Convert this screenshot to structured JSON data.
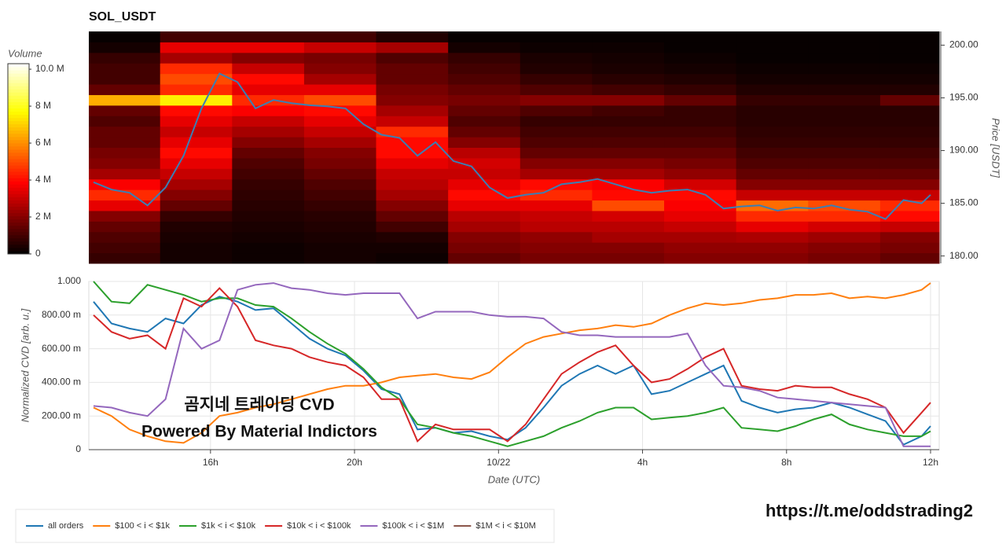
{
  "chart_data": [
    {
      "type": "heatmap",
      "title": "SOL_USDT",
      "colorbar_title": "Volume",
      "y_label": "Price [USDT]",
      "colorscale": "hot",
      "xlim": [
        12.62,
        36.24
      ],
      "ylim": [
        179.3,
        201.3
      ],
      "yticks": [
        {
          "value": 180,
          "label": "180.00"
        },
        {
          "value": 185,
          "label": "185.00"
        },
        {
          "value": 190,
          "label": "190.00"
        },
        {
          "value": 195,
          "label": "195.00"
        },
        {
          "value": 200,
          "label": "200.00"
        }
      ],
      "zlim": [
        0,
        10.3
      ],
      "zticks": [
        0,
        {
          "value": 2,
          "label": "2 M"
        },
        {
          "value": 4,
          "label": "4 M"
        },
        {
          "value": 6,
          "label": "6 M"
        },
        {
          "value": 8,
          "label": "8 M"
        },
        {
          "value": 10,
          "label": "10.0 M"
        }
      ],
      "xbins": [
        12.62,
        14.6,
        16.6,
        18.6,
        20.6,
        22.6,
        24.6,
        26.6,
        28.6,
        30.6,
        32.6,
        34.6,
        36.24
      ],
      "ybins": [
        179.3,
        180.3,
        181.3,
        182.3,
        183.3,
        184.3,
        185.3,
        186.3,
        187.3,
        188.3,
        189.3,
        190.3,
        191.3,
        192.3,
        193.3,
        194.3,
        195.3,
        196.3,
        197.3,
        198.3,
        199.3,
        200.3,
        201.3
      ],
      "z": [
        [
          0.8,
          0.3,
          0.2,
          0.3,
          0.2,
          1.5,
          1.8,
          1.8,
          2.0,
          2.0,
          1.8,
          1.5
        ],
        [
          1.0,
          0.3,
          0.2,
          0.3,
          0.3,
          1.8,
          2.0,
          2.0,
          2.2,
          2.2,
          2.0,
          1.8
        ],
        [
          1.2,
          0.4,
          0.3,
          0.4,
          0.5,
          2.0,
          2.2,
          2.5,
          2.5,
          2.6,
          2.4,
          2.0
        ],
        [
          1.5,
          0.5,
          0.4,
          0.5,
          1.0,
          2.5,
          2.8,
          2.8,
          3.0,
          3.5,
          3.2,
          3.0
        ],
        [
          2.0,
          0.8,
          0.5,
          0.6,
          1.5,
          2.8,
          3.0,
          3.2,
          3.5,
          4.5,
          4.5,
          4.0
        ],
        [
          3.5,
          1.5,
          0.6,
          0.8,
          2.0,
          3.5,
          3.5,
          5.0,
          3.8,
          5.5,
          5.0,
          4.5
        ],
        [
          4.5,
          2.0,
          0.7,
          1.0,
          2.5,
          4.0,
          4.5,
          4.0,
          4.0,
          3.0,
          3.0,
          3.0
        ],
        [
          3.8,
          2.5,
          0.8,
          1.2,
          2.8,
          3.5,
          4.0,
          3.8,
          3.2,
          2.0,
          2.0,
          2.0
        ],
        [
          2.5,
          3.0,
          1.0,
          1.5,
          3.0,
          3.0,
          2.5,
          2.5,
          2.2,
          1.5,
          1.5,
          1.5
        ],
        [
          2.0,
          3.5,
          1.2,
          1.8,
          3.5,
          3.2,
          2.0,
          2.0,
          1.8,
          1.2,
          1.2,
          1.2
        ],
        [
          1.8,
          4.0,
          1.5,
          2.0,
          4.0,
          2.8,
          1.5,
          1.5,
          1.5,
          1.0,
          1.0,
          1.0
        ],
        [
          1.5,
          3.5,
          2.0,
          2.5,
          4.0,
          2.0,
          1.2,
          1.2,
          1.2,
          0.8,
          0.8,
          0.8
        ],
        [
          1.5,
          3.0,
          2.5,
          3.0,
          4.5,
          1.5,
          1.0,
          1.0,
          1.0,
          0.7,
          0.7,
          0.7
        ],
        [
          1.2,
          3.5,
          3.0,
          3.5,
          3.0,
          1.2,
          0.8,
          0.8,
          0.8,
          0.6,
          0.6,
          0.6
        ],
        [
          1.5,
          4.0,
          3.8,
          4.0,
          2.5,
          1.5,
          1.2,
          1.0,
          0.8,
          0.6,
          0.6,
          0.6
        ],
        [
          6.5,
          7.5,
          4.5,
          5.0,
          2.0,
          1.8,
          2.0,
          2.0,
          1.5,
          0.8,
          0.8,
          1.5
        ],
        [
          1.5,
          4.5,
          3.5,
          3.5,
          1.8,
          1.5,
          1.2,
          1.0,
          0.8,
          0.5,
          0.5,
          0.5
        ],
        [
          1.0,
          5.0,
          4.0,
          2.5,
          1.5,
          1.2,
          0.8,
          0.6,
          0.5,
          0.3,
          0.3,
          0.3
        ],
        [
          1.0,
          4.5,
          3.0,
          2.0,
          1.5,
          1.0,
          0.5,
          0.4,
          0.3,
          0.2,
          0.2,
          0.2
        ],
        [
          0.8,
          2.5,
          2.0,
          1.8,
          1.2,
          0.8,
          0.4,
          0.3,
          0.2,
          0.1,
          0.1,
          0.1
        ],
        [
          0.3,
          3.5,
          3.5,
          3.0,
          2.5,
          0.3,
          0.2,
          0.2,
          0.1,
          0.1,
          0.1,
          0.1
        ],
        [
          0.1,
          1.0,
          1.0,
          1.0,
          0.5,
          0.1,
          0.1,
          0.1,
          0.1,
          0.1,
          0.1,
          0.1
        ]
      ],
      "x": [
        12.75,
        13.25,
        13.75,
        14.25,
        14.75,
        15.25,
        15.75,
        16.25,
        16.75,
        17.25,
        17.75,
        18.25,
        18.75,
        19.25,
        19.75,
        20.25,
        20.75,
        21.25,
        21.75,
        22.25,
        22.75,
        23.25,
        23.75,
        24.25,
        24.75,
        25.25,
        25.75,
        26.25,
        26.75,
        27.25,
        27.75,
        28.25,
        28.75,
        29.25,
        29.75,
        30.25,
        30.75,
        31.25,
        31.75,
        32.25,
        32.75,
        33.25,
        33.75,
        34.25,
        34.75,
        35.25,
        35.75,
        36.0
      ],
      "values": [
        187.0,
        186.3,
        186.0,
        184.8,
        186.5,
        189.5,
        194.0,
        197.3,
        196.5,
        194.0,
        194.8,
        194.5,
        194.3,
        194.2,
        194.0,
        192.5,
        191.5,
        191.2,
        189.5,
        190.8,
        189.0,
        188.5,
        186.5,
        185.5,
        185.8,
        186.0,
        186.8,
        187.0,
        187.3,
        186.8,
        186.3,
        186.0,
        186.2,
        186.3,
        185.8,
        184.5,
        184.7,
        184.8,
        184.3,
        184.6,
        184.5,
        184.8,
        184.4,
        184.2,
        183.5,
        185.3,
        185.0,
        185.8
      ],
      "color": "#3a7fb5"
    },
    {
      "type": "line",
      "x_label": "Date (UTC)",
      "y_label": "Normalized CVD [arb. u.]",
      "grid": true,
      "legend": "bottom-left",
      "xlim": [
        12.62,
        36.24
      ],
      "ylim": [
        0,
        1
      ],
      "xticks": [
        {
          "value": 16,
          "label": "16h"
        },
        {
          "value": 20,
          "label": "20h"
        },
        {
          "value": 24,
          "label": "10/22"
        },
        {
          "value": 28,
          "label": "4h"
        },
        {
          "value": 32,
          "label": "8h"
        },
        {
          "value": 36,
          "label": "12h"
        }
      ],
      "yticks": [
        0,
        {
          "value": 0.2,
          "label": "200.00 m"
        },
        {
          "value": 0.4,
          "label": "400.00 m"
        },
        {
          "value": 0.6,
          "label": "600.00 m"
        },
        {
          "value": 0.8,
          "label": "800.00 m"
        },
        {
          "value": 1,
          "label": "1.000"
        }
      ],
      "x": [
        12.75,
        13.25,
        13.75,
        14.25,
        14.75,
        15.25,
        15.75,
        16.25,
        16.75,
        17.25,
        17.75,
        18.25,
        18.75,
        19.25,
        19.75,
        20.25,
        20.75,
        21.25,
        21.75,
        22.25,
        22.75,
        23.25,
        23.75,
        24.25,
        24.75,
        25.25,
        25.75,
        26.25,
        26.75,
        27.25,
        27.75,
        28.25,
        28.75,
        29.25,
        29.75,
        30.25,
        30.75,
        31.25,
        31.75,
        32.25,
        32.75,
        33.25,
        33.75,
        34.25,
        34.75,
        35.25,
        35.75,
        36.0
      ],
      "series": [
        {
          "name": "all orders",
          "color": "#1f77b4",
          "values": [
            0.88,
            0.75,
            0.72,
            0.7,
            0.78,
            0.75,
            0.86,
            0.91,
            0.88,
            0.83,
            0.84,
            0.75,
            0.66,
            0.6,
            0.56,
            0.47,
            0.36,
            0.33,
            0.12,
            0.13,
            0.1,
            0.11,
            0.08,
            0.06,
            0.13,
            0.25,
            0.38,
            0.45,
            0.5,
            0.45,
            0.5,
            0.33,
            0.35,
            0.4,
            0.45,
            0.5,
            0.29,
            0.25,
            0.22,
            0.24,
            0.25,
            0.28,
            0.25,
            0.21,
            0.17,
            0.03,
            0.08,
            0.14
          ]
        },
        {
          "name": "$100 < i < $1k",
          "color": "#ff7f0e",
          "values": [
            0.25,
            0.2,
            0.12,
            0.08,
            0.05,
            0.04,
            0.1,
            0.2,
            0.22,
            0.25,
            0.27,
            0.3,
            0.33,
            0.36,
            0.38,
            0.38,
            0.4,
            0.43,
            0.44,
            0.45,
            0.43,
            0.42,
            0.46,
            0.55,
            0.63,
            0.67,
            0.69,
            0.71,
            0.72,
            0.74,
            0.73,
            0.75,
            0.8,
            0.84,
            0.87,
            0.86,
            0.87,
            0.89,
            0.9,
            0.92,
            0.92,
            0.93,
            0.9,
            0.91,
            0.9,
            0.92,
            0.95,
            0.99
          ]
        },
        {
          "name": "$1k < i < $10k",
          "color": "#2ca02c",
          "values": [
            1.0,
            0.88,
            0.87,
            0.98,
            0.95,
            0.92,
            0.88,
            0.9,
            0.9,
            0.86,
            0.85,
            0.78,
            0.7,
            0.63,
            0.57,
            0.48,
            0.37,
            0.3,
            0.15,
            0.13,
            0.1,
            0.08,
            0.05,
            0.02,
            0.05,
            0.08,
            0.13,
            0.17,
            0.22,
            0.25,
            0.25,
            0.18,
            0.19,
            0.2,
            0.22,
            0.25,
            0.13,
            0.12,
            0.11,
            0.14,
            0.18,
            0.21,
            0.15,
            0.12,
            0.1,
            0.08,
            0.08,
            0.11
          ]
        },
        {
          "name": "$10k < i < $100k",
          "color": "#d62728",
          "values": [
            0.8,
            0.7,
            0.66,
            0.68,
            0.6,
            0.9,
            0.85,
            0.96,
            0.85,
            0.65,
            0.62,
            0.6,
            0.55,
            0.52,
            0.5,
            0.43,
            0.3,
            0.3,
            0.05,
            0.15,
            0.12,
            0.12,
            0.12,
            0.05,
            0.15,
            0.3,
            0.45,
            0.52,
            0.58,
            0.62,
            0.5,
            0.4,
            0.42,
            0.48,
            0.55,
            0.6,
            0.38,
            0.36,
            0.35,
            0.38,
            0.37,
            0.37,
            0.33,
            0.3,
            0.25,
            0.1,
            0.22,
            0.28
          ]
        },
        {
          "name": "$100k < i < $1M",
          "color": "#9467bd",
          "values": [
            0.26,
            0.25,
            0.22,
            0.2,
            0.3,
            0.72,
            0.6,
            0.65,
            0.95,
            0.98,
            0.99,
            0.96,
            0.95,
            0.93,
            0.92,
            0.93,
            0.93,
            0.93,
            0.78,
            0.82,
            0.82,
            0.82,
            0.8,
            0.79,
            0.79,
            0.78,
            0.7,
            0.68,
            0.68,
            0.67,
            0.67,
            0.67,
            0.67,
            0.69,
            0.5,
            0.38,
            0.37,
            0.35,
            0.31,
            0.3,
            0.29,
            0.28,
            0.27,
            0.26,
            0.25,
            0.02,
            0.02,
            0.02
          ]
        },
        {
          "name": "$1M < i < $10M",
          "color": "#8c564b",
          "values": [
            null,
            null,
            null,
            null,
            null,
            null,
            null,
            null,
            null,
            null,
            null,
            null,
            null,
            null,
            null,
            null,
            null,
            null,
            null,
            null,
            null,
            null,
            null,
            null,
            null,
            null,
            null,
            null,
            null,
            null,
            null,
            null,
            null,
            null,
            null,
            null,
            null,
            null,
            null,
            null,
            null,
            null,
            null,
            null,
            null,
            null,
            null,
            null
          ]
        }
      ]
    }
  ],
  "watermark": [
    "곰지네 트레이딩 CVD",
    "Powered By Material Indictors"
  ],
  "link": "https://t.me/oddstrading2"
}
